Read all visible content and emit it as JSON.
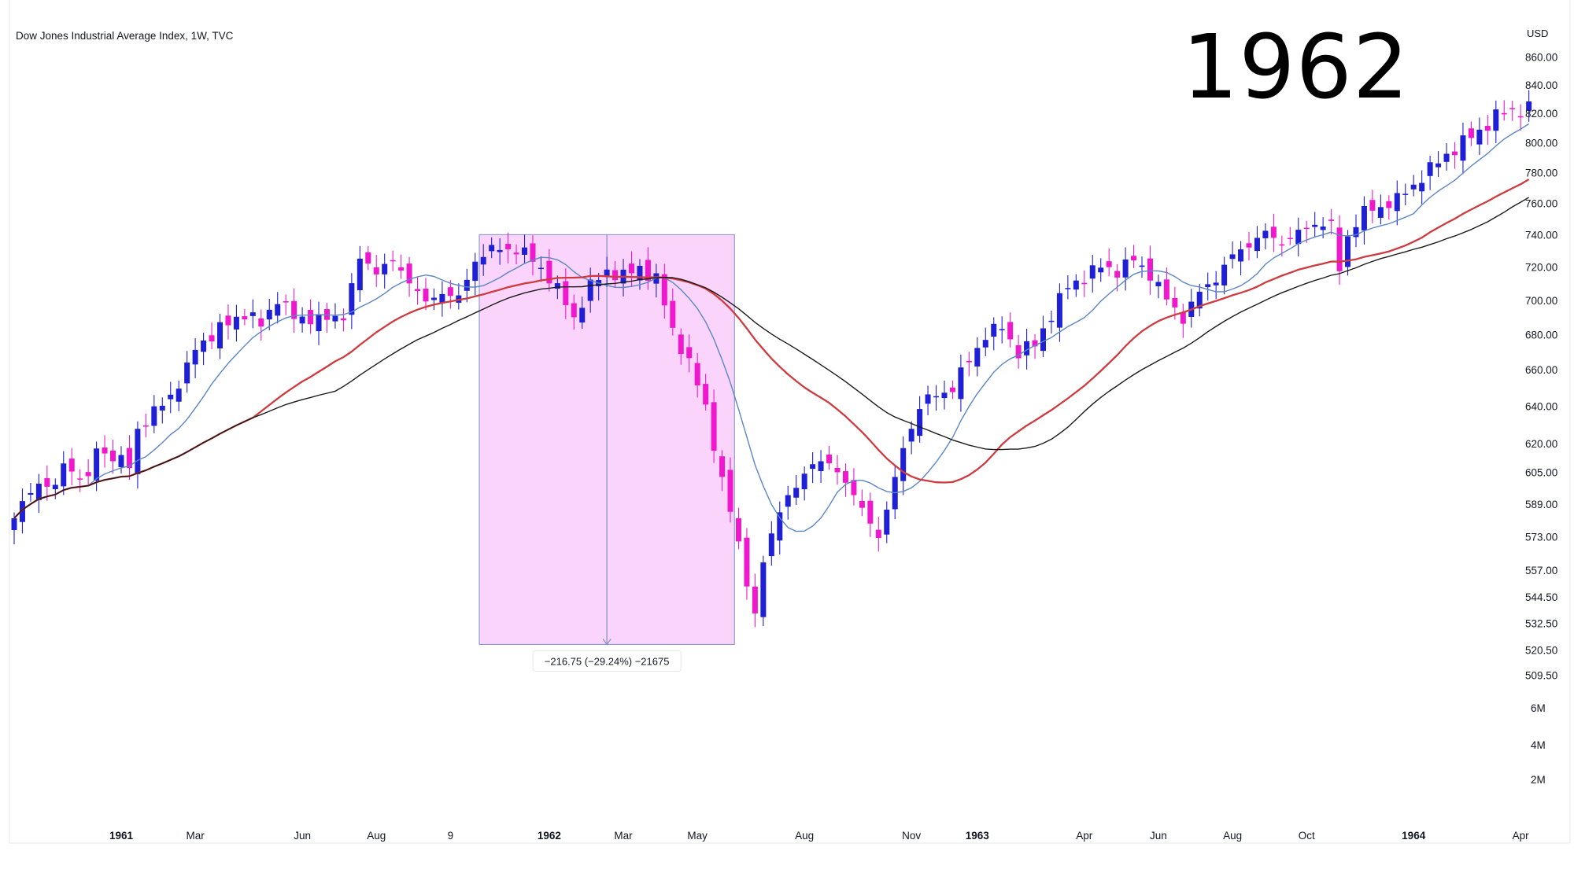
{
  "header": {
    "title": "Dow Jones Industrial Average Index, 1W, TVC",
    "currency": "USD",
    "big_label": "1962"
  },
  "colors": {
    "up": "#1f1fd6",
    "down": "#f018cc",
    "ma_short": "#5b86c4",
    "ma_mid": "#cf3a3f",
    "ma_long": "#1a1a1a",
    "range_fill": "#fbd4fb",
    "range_line": "#7d8fc2"
  },
  "chart_data": {
    "type": "candlestick",
    "title": "Dow Jones Industrial Average Index, 1W, TVC",
    "currency": "USD",
    "scale": "log",
    "ylim": [
      505,
      865
    ],
    "price_ticks": [
      "860.00",
      "840.00",
      "820.00",
      "800.00",
      "780.00",
      "760.00",
      "740.00",
      "720.00",
      "700.00",
      "680.00",
      "660.00",
      "640.00",
      "620.00",
      "605.00",
      "589.00",
      "573.00",
      "557.00",
      "544.50",
      "532.50",
      "520.50",
      "509.50"
    ],
    "volume_ticks": [
      "6M",
      "4M",
      "2M"
    ],
    "time_ticks": [
      {
        "label": "1961",
        "week": 13,
        "bold": true
      },
      {
        "label": "Mar",
        "week": 22,
        "bold": false
      },
      {
        "label": "Jun",
        "week": 35,
        "bold": false
      },
      {
        "label": "Aug",
        "week": 44,
        "bold": false
      },
      {
        "label": "9",
        "week": 53,
        "bold": false
      },
      {
        "label": "1962",
        "week": 65,
        "bold": true
      },
      {
        "label": "Mar",
        "week": 74,
        "bold": false
      },
      {
        "label": "May",
        "week": 83,
        "bold": false
      },
      {
        "label": "Aug",
        "week": 96,
        "bold": false
      },
      {
        "label": "Nov",
        "week": 109,
        "bold": false
      },
      {
        "label": "1963",
        "week": 117,
        "bold": true
      },
      {
        "label": "Apr",
        "week": 130,
        "bold": false
      },
      {
        "label": "Jun",
        "week": 139,
        "bold": false
      },
      {
        "label": "Aug",
        "week": 148,
        "bold": false
      },
      {
        "label": "Oct",
        "week": 157,
        "bold": false
      },
      {
        "label": "1964",
        "week": 170,
        "bold": true
      },
      {
        "label": "Apr",
        "week": 183,
        "bold": false
      }
    ],
    "close_anchors": [
      [
        0,
        582
      ],
      [
        3,
        601
      ],
      [
        5,
        596
      ],
      [
        6,
        610
      ],
      [
        9,
        600
      ],
      [
        10,
        618
      ],
      [
        12,
        613
      ],
      [
        14,
        608
      ],
      [
        15,
        628
      ],
      [
        17,
        636
      ],
      [
        19,
        646
      ],
      [
        21,
        660
      ],
      [
        22,
        672
      ],
      [
        24,
        680
      ],
      [
        26,
        686
      ],
      [
        28,
        693
      ],
      [
        30,
        685
      ],
      [
        32,
        702
      ],
      [
        34,
        689
      ],
      [
        36,
        690
      ],
      [
        38,
        688
      ],
      [
        40,
        692
      ],
      [
        42,
        724
      ],
      [
        44,
        719
      ],
      [
        46,
        722
      ],
      [
        48,
        713
      ],
      [
        50,
        697
      ],
      [
        52,
        706
      ],
      [
        54,
        700
      ],
      [
        56,
        725
      ],
      [
        58,
        730
      ],
      [
        60,
        732
      ],
      [
        62,
        728
      ],
      [
        64,
        720
      ],
      [
        66,
        706
      ],
      [
        68,
        690
      ],
      [
        70,
        708
      ],
      [
        72,
        718
      ],
      [
        74,
        714
      ],
      [
        76,
        720
      ],
      [
        78,
        712
      ],
      [
        80,
        683
      ],
      [
        82,
        663
      ],
      [
        84,
        640
      ],
      [
        86,
        600
      ],
      [
        88,
        570
      ],
      [
        90,
        535
      ],
      [
        91,
        560
      ],
      [
        93,
        588
      ],
      [
        95,
        596
      ],
      [
        97,
        612
      ],
      [
        99,
        608
      ],
      [
        101,
        602
      ],
      [
        103,
        585
      ],
      [
        105,
        574
      ],
      [
        107,
        600
      ],
      [
        108,
        618
      ],
      [
        110,
        640
      ],
      [
        112,
        646
      ],
      [
        114,
        650
      ],
      [
        116,
        665
      ],
      [
        118,
        680
      ],
      [
        120,
        684
      ],
      [
        122,
        670
      ],
      [
        124,
        674
      ],
      [
        126,
        692
      ],
      [
        128,
        708
      ],
      [
        130,
        714
      ],
      [
        132,
        720
      ],
      [
        134,
        718
      ],
      [
        136,
        724
      ],
      [
        138,
        716
      ],
      [
        140,
        700
      ],
      [
        142,
        690
      ],
      [
        144,
        704
      ],
      [
        146,
        714
      ],
      [
        148,
        726
      ],
      [
        150,
        735
      ],
      [
        152,
        740
      ],
      [
        154,
        736
      ],
      [
        156,
        740
      ],
      [
        158,
        748
      ],
      [
        160,
        745
      ],
      [
        161,
        718
      ],
      [
        162,
        740
      ],
      [
        164,
        754
      ],
      [
        166,
        758
      ],
      [
        168,
        762
      ],
      [
        170,
        772
      ],
      [
        172,
        782
      ],
      [
        174,
        792
      ],
      [
        176,
        800
      ],
      [
        178,
        808
      ],
      [
        180,
        818
      ],
      [
        182,
        822
      ],
      [
        184,
        824
      ]
    ],
    "moving_averages": [
      {
        "period": 10,
        "color": "#5b86c4",
        "width": 1.4
      },
      {
        "period": 30,
        "color": "#cf3a3f",
        "width": 2.3
      },
      {
        "period": 40,
        "color": "#1a1a1a",
        "width": 1.4
      }
    ],
    "range_measure": {
      "start_week": 56.5,
      "end_week": 87.5,
      "top_price": 740,
      "bottom_price": 523,
      "label": "−216.75 (−29.24%) −21675"
    }
  }
}
